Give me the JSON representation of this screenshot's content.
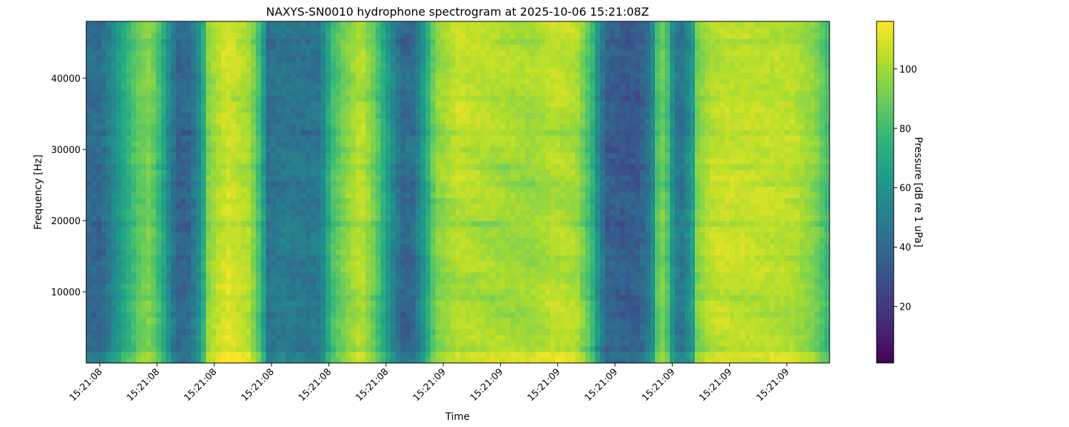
{
  "chart_data": {
    "type": "heatmap",
    "title": "NAXYS-SN0010 hydrophone spectrogram at 2025-10-06 15:21:08Z",
    "xlabel": "Time",
    "ylabel": "Frequency [Hz]",
    "colorbar_label": "Pressure [dB re 1 uPa]",
    "colormap": "viridis",
    "colormap_stops": [
      "#440154",
      "#482878",
      "#3e4989",
      "#31688e",
      "#26828e",
      "#1f9e89",
      "#35b779",
      "#6ece58",
      "#b5de2b",
      "#fde725"
    ],
    "x_tick_labels": [
      "15:21:08",
      "15:21:08",
      "15:21:08",
      "15:21:08",
      "15:21:08",
      "15:21:08",
      "15:21:09",
      "15:21:09",
      "15:21:09",
      "15:21:09",
      "15:21:09",
      "15:21:09",
      "15:21:09"
    ],
    "y_ticks": [
      10000,
      20000,
      30000,
      40000
    ],
    "y_tick_labels": [
      "10000",
      "20000",
      "30000",
      "40000"
    ],
    "ylim": [
      0,
      48000
    ],
    "colorbar_ticks": [
      20,
      40,
      60,
      80,
      100
    ],
    "colorbar_tick_labels": [
      "20",
      "40",
      "60",
      "80",
      "100"
    ],
    "clim": [
      1,
      116
    ],
    "time_profile": {
      "time_fraction": [
        0.0,
        0.02,
        0.05,
        0.07,
        0.085,
        0.1,
        0.115,
        0.125,
        0.14,
        0.155,
        0.165,
        0.19,
        0.22,
        0.235,
        0.245,
        0.26,
        0.3,
        0.315,
        0.33,
        0.35,
        0.37,
        0.39,
        0.405,
        0.425,
        0.44,
        0.455,
        0.47,
        0.5,
        0.55,
        0.6,
        0.63,
        0.66,
        0.68,
        0.69,
        0.7,
        0.72,
        0.745,
        0.76,
        0.77,
        0.78,
        0.79,
        0.8,
        0.815,
        0.82,
        0.84,
        0.86,
        0.9,
        0.95,
        0.98,
        1.0
      ],
      "level_db": [
        42,
        40,
        70,
        88,
        95,
        78,
        50,
        38,
        42,
        62,
        98,
        110,
        102,
        78,
        45,
        48,
        46,
        48,
        80,
        95,
        105,
        88,
        65,
        40,
        42,
        65,
        95,
        105,
        102,
        100,
        105,
        102,
        80,
        55,
        38,
        35,
        36,
        50,
        92,
        90,
        55,
        45,
        62,
        92,
        104,
        106,
        105,
        104,
        95,
        78
      ]
    },
    "frequency_bands_hz": [
      2200,
      4500,
      7000,
      9500,
      12000,
      14500,
      17000,
      19500,
      22500,
      25000,
      27500,
      30000,
      32500,
      35000,
      37500,
      40000,
      42500,
      45000
    ]
  }
}
